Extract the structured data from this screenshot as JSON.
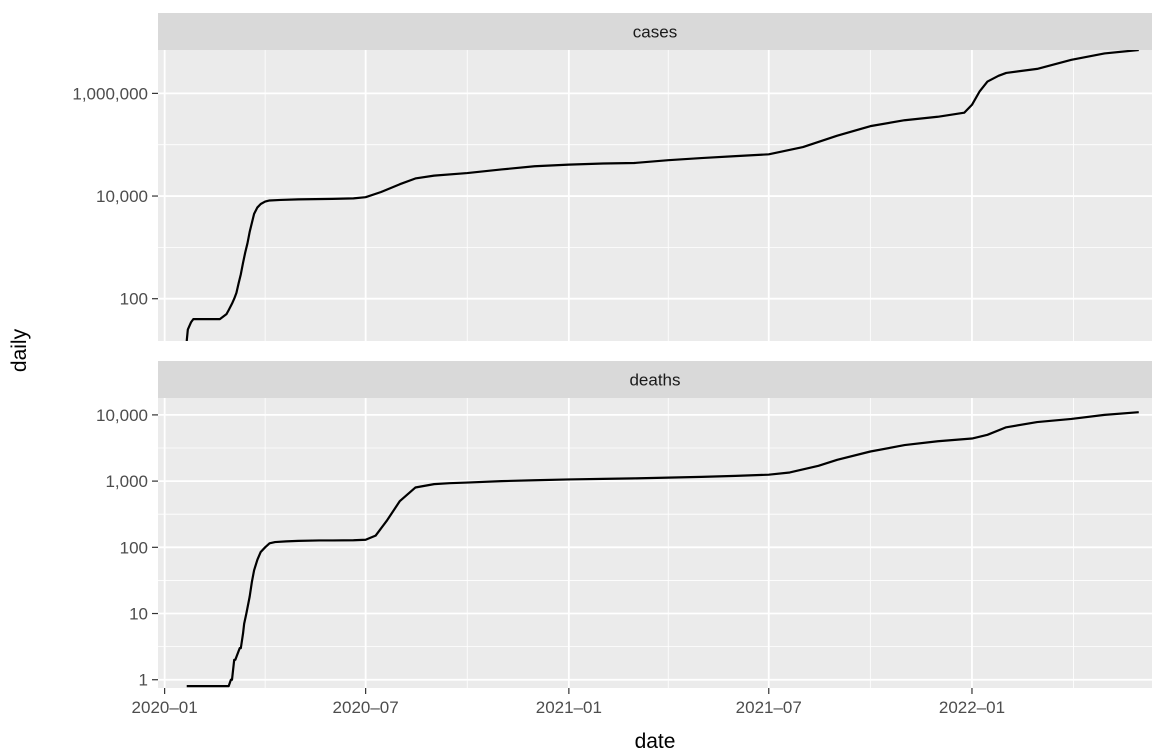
{
  "chart_data": {
    "type": "line",
    "xlabel": "date",
    "ylabel": "daily",
    "x_scale": "date",
    "y_scale": "log10",
    "grid": true,
    "x_range": [
      "2019-12-26",
      "2022-06-13"
    ],
    "x_ticks": [
      "2020-01-01",
      "2020-07-01",
      "2021-01-01",
      "2021-07-01",
      "2022-01-01"
    ],
    "x_tick_labels": [
      "2020–01",
      "2020–07",
      "2021–01",
      "2021–07",
      "2022–01"
    ],
    "panels": [
      {
        "strip": "cases",
        "ylim": [
          15,
          7000000
        ],
        "y_ticks": [
          100,
          10000,
          1000000
        ],
        "y_tick_labels": [
          "100",
          "10,000",
          "1,000,000"
        ],
        "series": [
          {
            "x": [
              "2020-01-21",
              "2020-01-22",
              "2020-01-23",
              "2020-01-25",
              "2020-01-27",
              "2020-01-31",
              "2020-02-03",
              "2020-02-20",
              "2020-02-26",
              "2020-02-28",
              "2020-03-02",
              "2020-03-04",
              "2020-03-06",
              "2020-03-08",
              "2020-03-10",
              "2020-03-12",
              "2020-03-14",
              "2020-03-16",
              "2020-03-18",
              "2020-03-20",
              "2020-03-22",
              "2020-03-25",
              "2020-03-28",
              "2020-04-01",
              "2020-04-05",
              "2020-04-15",
              "2020-05-01",
              "2020-06-01",
              "2020-06-20",
              "2020-07-01",
              "2020-07-15",
              "2020-08-01",
              "2020-08-15",
              "2020-09-01",
              "2020-10-01",
              "2020-11-01",
              "2020-12-01",
              "2021-01-01",
              "2021-02-01",
              "2021-03-01",
              "2021-04-01",
              "2021-05-01",
              "2021-06-01",
              "2021-07-01",
              "2021-08-01",
              "2021-09-01",
              "2021-10-01",
              "2021-11-01",
              "2021-12-01",
              "2021-12-25",
              "2022-01-01",
              "2022-01-08",
              "2022-01-15",
              "2022-01-25",
              "2022-02-01",
              "2022-03-01",
              "2022-04-01",
              "2022-05-01",
              "2022-06-01"
            ],
            "y": [
              15,
              25,
              28,
              35,
              40,
              40,
              40,
              40,
              50,
              60,
              80,
              100,
              130,
              200,
              300,
              500,
              800,
              1200,
              2000,
              3000,
              4500,
              6000,
              7000,
              7800,
              8200,
              8400,
              8600,
              8800,
              9000,
              9500,
              12000,
              17000,
              22000,
              25000,
              28000,
              33000,
              38000,
              41000,
              43000,
              44000,
              50000,
              55000,
              60000,
              65000,
              90000,
              150000,
              230000,
              300000,
              350000,
              420000,
              600000,
              1100000,
              1700000,
              2200000,
              2500000,
              3000000,
              4500000,
              6000000,
              7000000
            ]
          }
        ]
      },
      {
        "strip": "deaths",
        "ylim": [
          0.75,
          18000
        ],
        "y_ticks": [
          1,
          10,
          100,
          1000,
          10000
        ],
        "y_tick_labels": [
          "1",
          "10",
          "100",
          "1,000",
          "10,000"
        ],
        "series": [
          {
            "x": [
              "2020-01-21",
              "2020-02-28",
              "2020-03-01",
              "2020-03-02",
              "2020-03-04",
              "2020-03-05",
              "2020-03-09",
              "2020-03-10",
              "2020-03-12",
              "2020-03-13",
              "2020-03-15",
              "2020-03-18",
              "2020-03-20",
              "2020-03-22",
              "2020-03-25",
              "2020-03-28",
              "2020-04-01",
              "2020-04-05",
              "2020-04-10",
              "2020-04-20",
              "2020-05-01",
              "2020-05-20",
              "2020-06-01",
              "2020-06-20",
              "2020-07-01",
              "2020-07-10",
              "2020-07-20",
              "2020-08-01",
              "2020-08-15",
              "2020-09-01",
              "2020-09-15",
              "2020-10-01",
              "2020-11-01",
              "2020-12-01",
              "2021-01-01",
              "2021-02-01",
              "2021-03-01",
              "2021-04-01",
              "2021-05-01",
              "2021-06-01",
              "2021-07-01",
              "2021-07-20",
              "2021-08-15",
              "2021-09-01",
              "2021-10-01",
              "2021-11-01",
              "2021-12-01",
              "2022-01-01",
              "2022-01-15",
              "2022-02-01",
              "2022-03-01",
              "2022-04-01",
              "2022-05-01",
              "2022-06-01"
            ],
            "y": [
              0.8,
              0.8,
              1,
              1,
              2,
              2,
              3,
              3,
              5,
              7,
              10,
              18,
              30,
              45,
              65,
              85,
              100,
              115,
              120,
              123,
              125,
              127,
              127,
              128,
              130,
              150,
              250,
              500,
              800,
              900,
              930,
              950,
              1000,
              1030,
              1060,
              1080,
              1100,
              1130,
              1160,
              1200,
              1250,
              1350,
              1700,
              2100,
              2800,
              3500,
              4000,
              4400,
              5000,
              6500,
              7800,
              8700,
              10000,
              11000
            ]
          }
        ]
      }
    ]
  }
}
